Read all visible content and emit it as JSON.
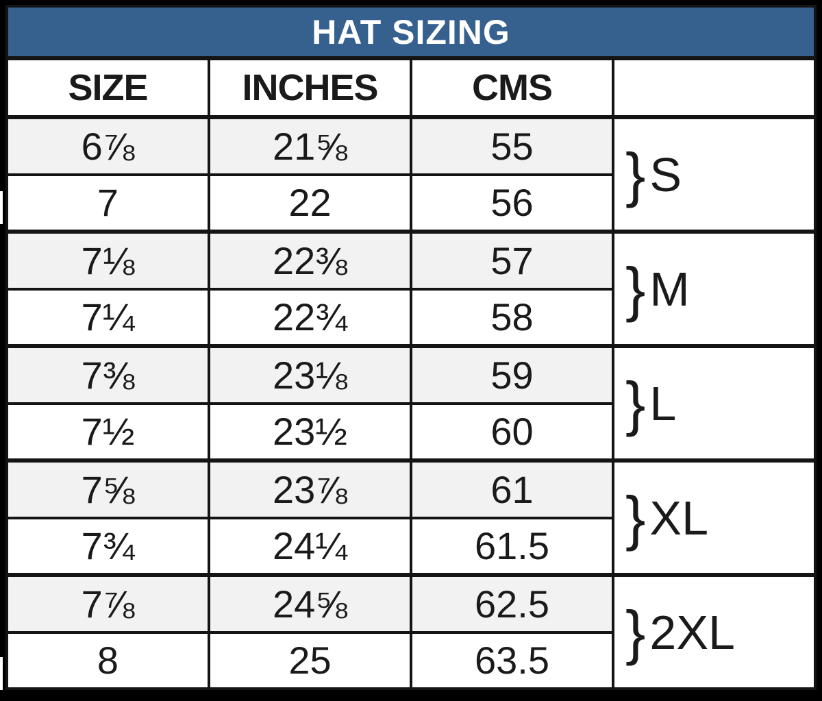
{
  "chart_data": {
    "type": "table",
    "title": "HAT SIZING",
    "columns": [
      "SIZE",
      "INCHES",
      "CMS"
    ],
    "rows": [
      [
        "6⅞",
        "21⅝",
        "55"
      ],
      [
        "7",
        "22",
        "56"
      ],
      [
        "7⅛",
        "22⅜",
        "57"
      ],
      [
        "7¼",
        "22¾",
        "58"
      ],
      [
        "7⅜",
        "23⅛",
        "59"
      ],
      [
        "7½",
        "23½",
        "60"
      ],
      [
        "7⅝",
        "23⅞",
        "61"
      ],
      [
        "7¾",
        "24¼",
        "61.5"
      ],
      [
        "7⅞",
        "24⅝",
        "62.5"
      ],
      [
        "8",
        "25",
        "63.5"
      ]
    ],
    "groups": [
      {
        "label": "S",
        "rows": [
          0,
          1
        ]
      },
      {
        "label": "M",
        "rows": [
          2,
          3
        ]
      },
      {
        "label": "L",
        "rows": [
          4,
          5
        ]
      },
      {
        "label": "XL",
        "rows": [
          6,
          7
        ]
      },
      {
        "label": "2XL",
        "rows": [
          8,
          9
        ]
      }
    ],
    "layout": {
      "row_striping": "odd rows shaded",
      "group_column_position": "right"
    }
  },
  "glyphs": {
    "brace": "}"
  },
  "colors": {
    "title_bg": "#36618F",
    "title_text": "#ffffff",
    "row_alt_bg": "#F2F2F2",
    "row_bg": "#ffffff",
    "border": "#141414",
    "text": "#1a1a1a"
  }
}
